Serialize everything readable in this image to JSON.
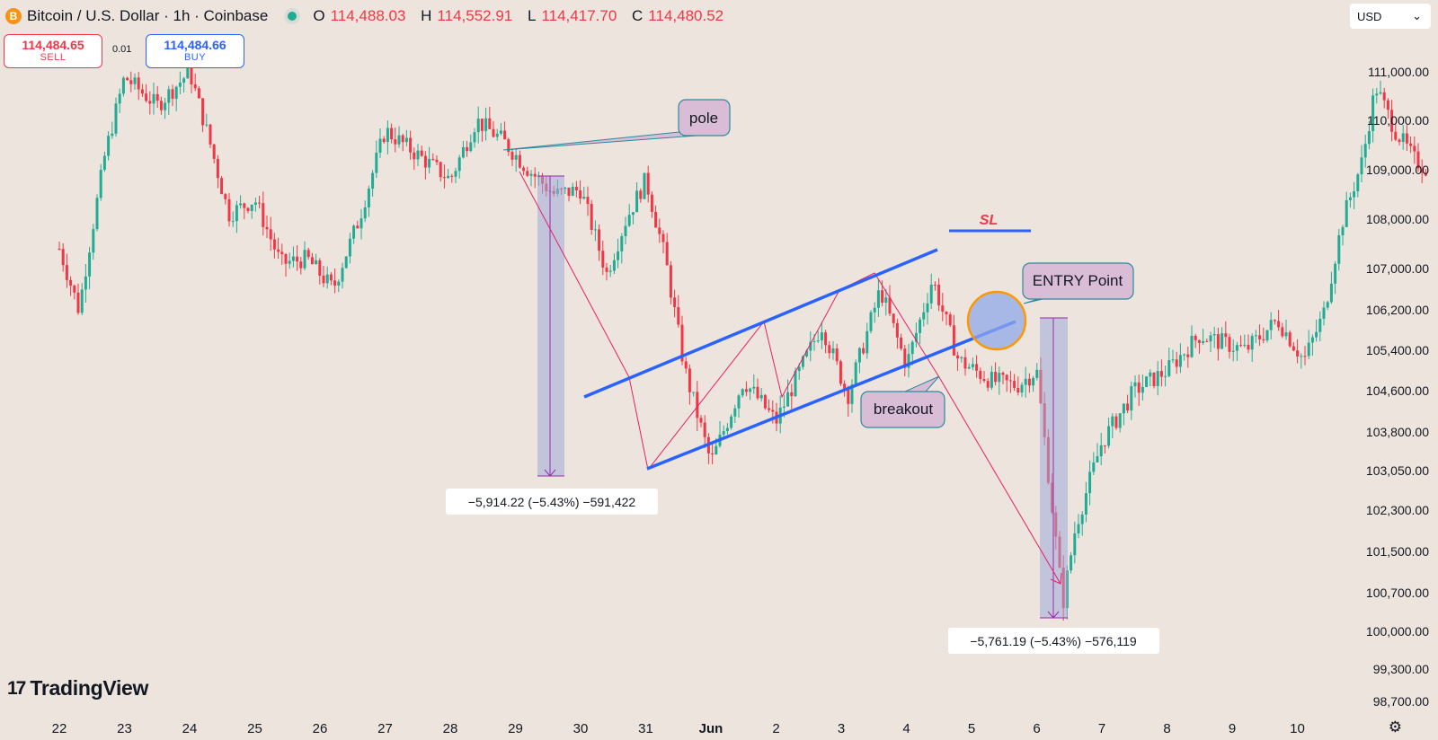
{
  "header": {
    "symbol_icon": "B",
    "title": "Bitcoin / U.S. Dollar · 1h · Coinbase",
    "ohlc": [
      {
        "k": "O",
        "v": "114,488.03"
      },
      {
        "k": "H",
        "v": "114,552.91"
      },
      {
        "k": "L",
        "v": "114,417.70"
      },
      {
        "k": "C",
        "v": "114,480.52"
      }
    ]
  },
  "trade": {
    "sell_price": "114,484.65",
    "sell_label": "SELL",
    "buy_price": "114,484.66",
    "buy_label": "BUY",
    "spread": "0.01"
  },
  "currency": {
    "value": "USD"
  },
  "brand": {
    "name": "TradingView",
    "mark": "17"
  },
  "colors": {
    "up": "#22ab94",
    "down": "#f23645",
    "channel": "#2962ff",
    "annotation_fill": "#d9bdd6",
    "annotation_border": "#2b8a9d",
    "measure_fill": "#9fa9d9",
    "measure_line": "#9c27b0",
    "zigzag": "#e91e63",
    "background": "#ede5dd"
  },
  "annotations": {
    "pole": "pole",
    "sl": "SL",
    "entry": "ENTRY Point",
    "breakout": "breakout"
  },
  "measures": {
    "first": "−5,914.22 (−5.43%) −591,422",
    "second": "−5,761.19 (−5.43%) −576,119"
  },
  "chart_data": {
    "type": "candlestick",
    "y_ticks": [
      "111,000.00",
      "110,000.00",
      "109,000.00",
      "108,000.00",
      "107,000.00",
      "106,200.00",
      "105,400.00",
      "104,600.00",
      "103,800.00",
      "103,050.00",
      "102,300.00",
      "101,500.00",
      "100,700.00",
      "100,000.00",
      "99,300.00",
      "98,700.00"
    ],
    "x_ticks": [
      "22",
      "23",
      "24",
      "25",
      "26",
      "27",
      "28",
      "29",
      "30",
      "31",
      "Jun",
      "2",
      "3",
      "4",
      "5",
      "6",
      "7",
      "8",
      "9",
      "10"
    ],
    "price_path": [
      [
        0,
        107400
      ],
      [
        0.3,
        106200
      ],
      [
        0.7,
        109300
      ],
      [
        1.0,
        110900
      ],
      [
        1.5,
        110300
      ],
      [
        2.0,
        111000
      ],
      [
        2.3,
        109600
      ],
      [
        2.6,
        108100
      ],
      [
        3.0,
        108400
      ],
      [
        3.4,
        107100
      ],
      [
        3.8,
        107200
      ],
      [
        4.2,
        106600
      ],
      [
        4.6,
        108000
      ],
      [
        5.0,
        109800
      ],
      [
        5.5,
        109300
      ],
      [
        6.0,
        108800
      ],
      [
        6.4,
        110000
      ],
      [
        6.8,
        109600
      ],
      [
        7.2,
        109000
      ],
      [
        7.6,
        108500
      ],
      [
        8.0,
        108600
      ],
      [
        8.4,
        106900
      ],
      [
        8.7,
        108000
      ],
      [
        9.0,
        108800
      ],
      [
        9.3,
        107200
      ],
      [
        9.6,
        105000
      ],
      [
        10.0,
        103200
      ],
      [
        10.5,
        104800
      ],
      [
        11.0,
        104000
      ],
      [
        11.7,
        105900
      ],
      [
        12.1,
        104500
      ],
      [
        12.6,
        106600
      ],
      [
        13.0,
        105100
      ],
      [
        13.4,
        106800
      ],
      [
        13.8,
        105200
      ],
      [
        14.3,
        104800
      ],
      [
        14.7,
        104700
      ],
      [
        15.0,
        105000
      ],
      [
        15.4,
        100500
      ],
      [
        15.6,
        102000
      ],
      [
        16.0,
        103600
      ],
      [
        16.5,
        104600
      ],
      [
        17.0,
        105000
      ],
      [
        17.5,
        105700
      ],
      [
        18.2,
        105400
      ],
      [
        18.7,
        106000
      ],
      [
        19.1,
        105200
      ],
      [
        19.4,
        106100
      ],
      [
        19.7,
        108000
      ],
      [
        20.0,
        109200
      ],
      [
        20.2,
        110700
      ],
      [
        20.5,
        109800
      ],
      [
        20.8,
        109200
      ],
      [
        21.0,
        109000
      ]
    ],
    "channel": {
      "upper": [
        [
          10.0,
          104700
        ],
        [
          14.4,
          107300
        ]
      ],
      "lower": [
        [
          10.0,
          103200
        ],
        [
          14.4,
          106000
        ]
      ]
    },
    "pole_measure": {
      "from": 108800,
      "to": 103100,
      "change": "−5,914.22"
    },
    "target_measure": {
      "from": 106000,
      "to": 100250,
      "change": "−5,761.19"
    },
    "stop_loss": 107750,
    "entry_price": 106000
  }
}
